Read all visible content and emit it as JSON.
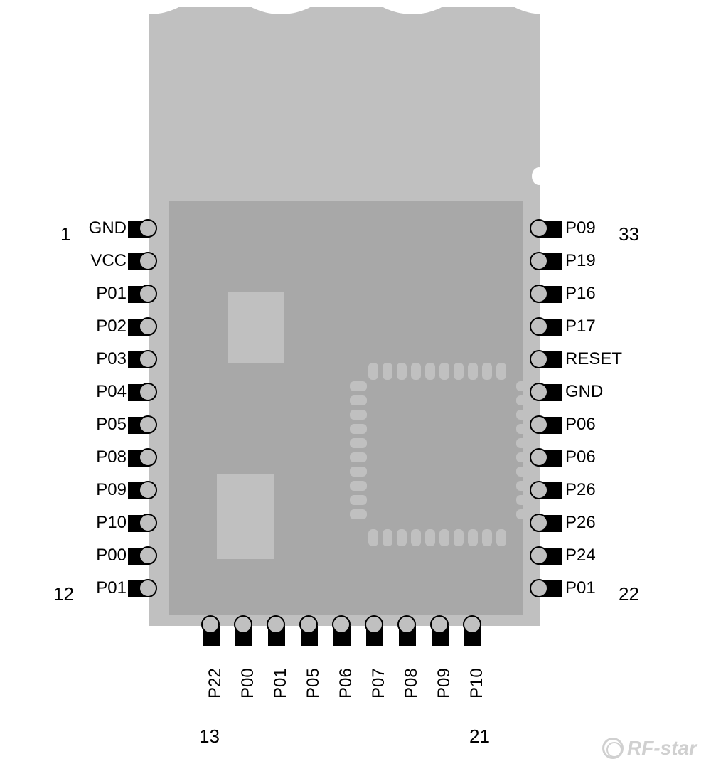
{
  "diagram": {
    "type": "pinout",
    "module_color": "#c0c0c0",
    "shield_color": "#a8a8a8",
    "pin_tooth_color": "#000000",
    "background": "#ffffff",
    "label_fontsize": 24
  },
  "pins": {
    "left": [
      {
        "num": "1",
        "label": "GND"
      },
      {
        "num": "",
        "label": "VCC"
      },
      {
        "num": "",
        "label": "P01"
      },
      {
        "num": "",
        "label": "P02"
      },
      {
        "num": "",
        "label": "P03"
      },
      {
        "num": "",
        "label": "P04"
      },
      {
        "num": "",
        "label": "P05"
      },
      {
        "num": "",
        "label": "P08"
      },
      {
        "num": "",
        "label": "P09"
      },
      {
        "num": "",
        "label": "P10"
      },
      {
        "num": "",
        "label": "P00"
      },
      {
        "num": "12",
        "label": "P01"
      }
    ],
    "right": [
      {
        "num": "33",
        "label": "P09"
      },
      {
        "num": "",
        "label": "P19"
      },
      {
        "num": "",
        "label": "P16"
      },
      {
        "num": "",
        "label": "P17"
      },
      {
        "num": "",
        "label": "RESET"
      },
      {
        "num": "",
        "label": "GND"
      },
      {
        "num": "",
        "label": "P06"
      },
      {
        "num": "",
        "label": "P06"
      },
      {
        "num": "",
        "label": "P26"
      },
      {
        "num": "",
        "label": "P26"
      },
      {
        "num": "",
        "label": "P24"
      },
      {
        "num": "22",
        "label": "P01"
      }
    ],
    "bottom": [
      {
        "num": "13",
        "label": "P22"
      },
      {
        "num": "",
        "label": "P00"
      },
      {
        "num": "",
        "label": "P01"
      },
      {
        "num": "",
        "label": "P05"
      },
      {
        "num": "",
        "label": "P06"
      },
      {
        "num": "",
        "label": "P07"
      },
      {
        "num": "",
        "label": "P08"
      },
      {
        "num": "",
        "label": "P09"
      },
      {
        "num": "21",
        "label": "P10"
      }
    ]
  },
  "corner_numbers": {
    "top_left": "1",
    "bottom_left": "12",
    "bottom_start": "13",
    "bottom_end": "21",
    "right_bottom": "22",
    "right_top": "33"
  },
  "watermark": "RF-star"
}
